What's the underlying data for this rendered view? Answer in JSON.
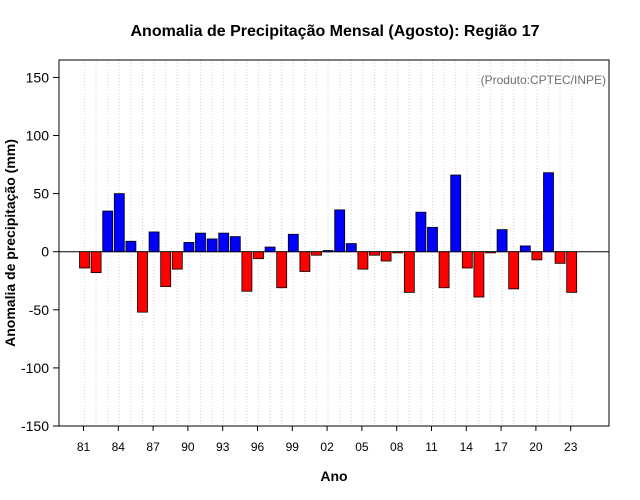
{
  "chart_data": {
    "type": "bar",
    "title": "Anomalia de Precipitação Mensal (Agosto): Região 17",
    "xlabel": "Ano",
    "ylabel": "Anomalia de precipitação (mm)",
    "credit": "(Produto:CPTEC/INPE)",
    "ylim": [
      -150,
      165
    ],
    "yticks": [
      -150,
      -100,
      -50,
      0,
      50,
      100,
      150
    ],
    "ytick_labels": [
      "-150",
      "-100",
      "-50",
      "0",
      "50",
      "100",
      "150"
    ],
    "grid": true,
    "colors": {
      "positive": "#0000ff",
      "negative": "#ff0000",
      "zero_line": "#000000",
      "grid": "#d3d3d3"
    },
    "xtick_labels": [
      {
        "year": 1981,
        "label": "81"
      },
      {
        "year": 1984,
        "label": "84"
      },
      {
        "year": 1987,
        "label": "87"
      },
      {
        "year": 1990,
        "label": "90"
      },
      {
        "year": 1993,
        "label": "93"
      },
      {
        "year": 1996,
        "label": "96"
      },
      {
        "year": 1999,
        "label": "99"
      },
      {
        "year": 2002,
        "label": "02"
      },
      {
        "year": 2005,
        "label": "05"
      },
      {
        "year": 2008,
        "label": "08"
      },
      {
        "year": 2011,
        "label": "11"
      },
      {
        "year": 2014,
        "label": "14"
      },
      {
        "year": 2017,
        "label": "17"
      },
      {
        "year": 2020,
        "label": "20"
      },
      {
        "year": 2023,
        "label": "23"
      }
    ],
    "years": [
      1981,
      1982,
      1983,
      1984,
      1985,
      1986,
      1987,
      1988,
      1989,
      1990,
      1991,
      1992,
      1993,
      1994,
      1995,
      1996,
      1997,
      1998,
      1999,
      2000,
      2001,
      2002,
      2003,
      2004,
      2005,
      2006,
      2007,
      2008,
      2009,
      2010,
      2011,
      2012,
      2013,
      2014,
      2015,
      2016,
      2017,
      2018,
      2019,
      2020,
      2021,
      2022,
      2023
    ],
    "values": [
      -14,
      -18,
      35,
      50,
      9,
      -52,
      17,
      -30,
      -15,
      8,
      16,
      11,
      16,
      13,
      -34,
      -6,
      4,
      -31,
      15,
      -17,
      -3,
      1,
      36,
      7,
      -15,
      -3,
      -8,
      -1,
      -35,
      34,
      21,
      -31,
      66,
      -14,
      -39,
      -1,
      19,
      -32,
      5,
      -7,
      68,
      -10,
      -35
    ]
  }
}
